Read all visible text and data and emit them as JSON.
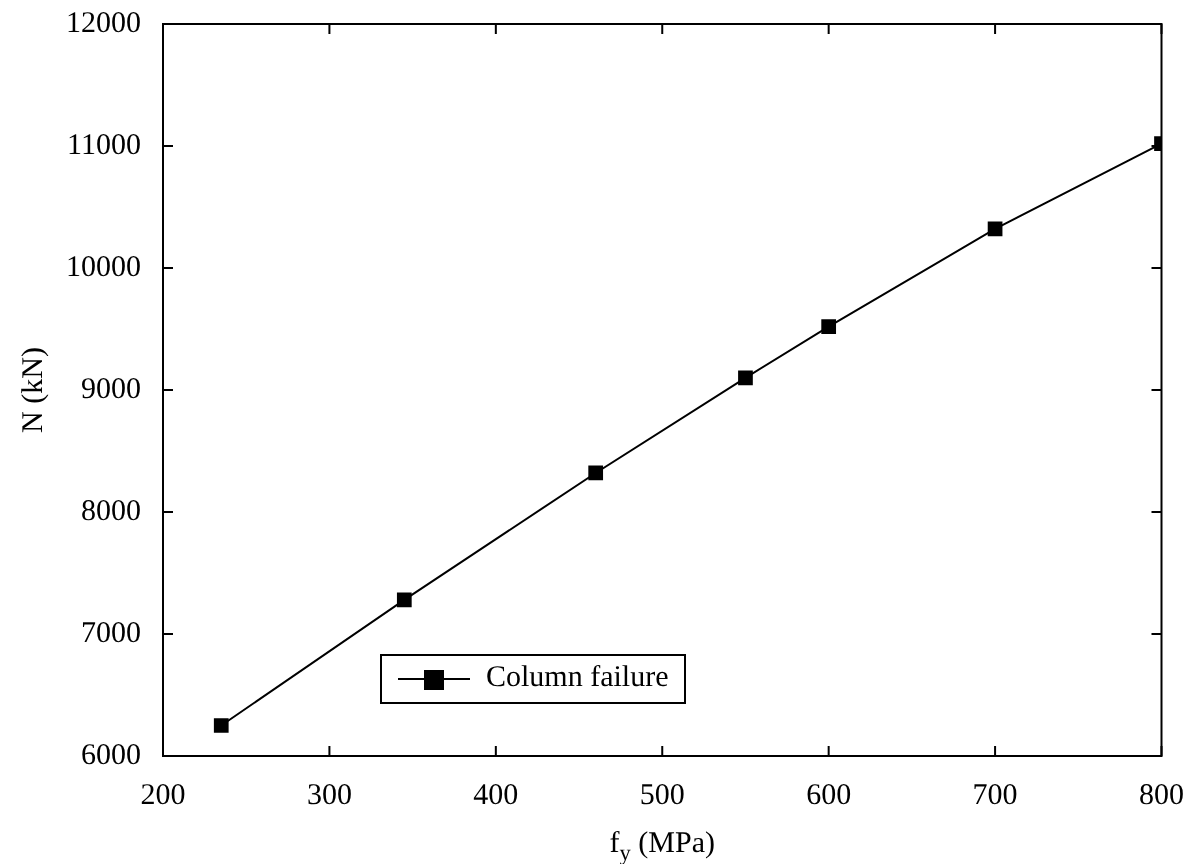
{
  "chart_data": {
    "type": "line",
    "xlabel": "f$_{y}$ (MPa)",
    "ylabel": "N (kN)",
    "x": [
      235,
      345,
      460,
      550,
      600,
      700,
      800
    ],
    "series": [
      {
        "name": "Column failure",
        "color": "#000000",
        "values": [
          6250,
          7280,
          8320,
          9100,
          9520,
          10320,
          11020
        ]
      }
    ],
    "xlim": [
      200,
      800
    ],
    "xticks": [
      200,
      300,
      400,
      500,
      600,
      700,
      800
    ],
    "ylim": [
      6000,
      12000
    ],
    "yticks": [
      6000,
      7000,
      8000,
      9000,
      10000,
      11000,
      12000
    ],
    "marker": "square",
    "line_style": "solid",
    "legend": "bottom",
    "grid": false
  }
}
